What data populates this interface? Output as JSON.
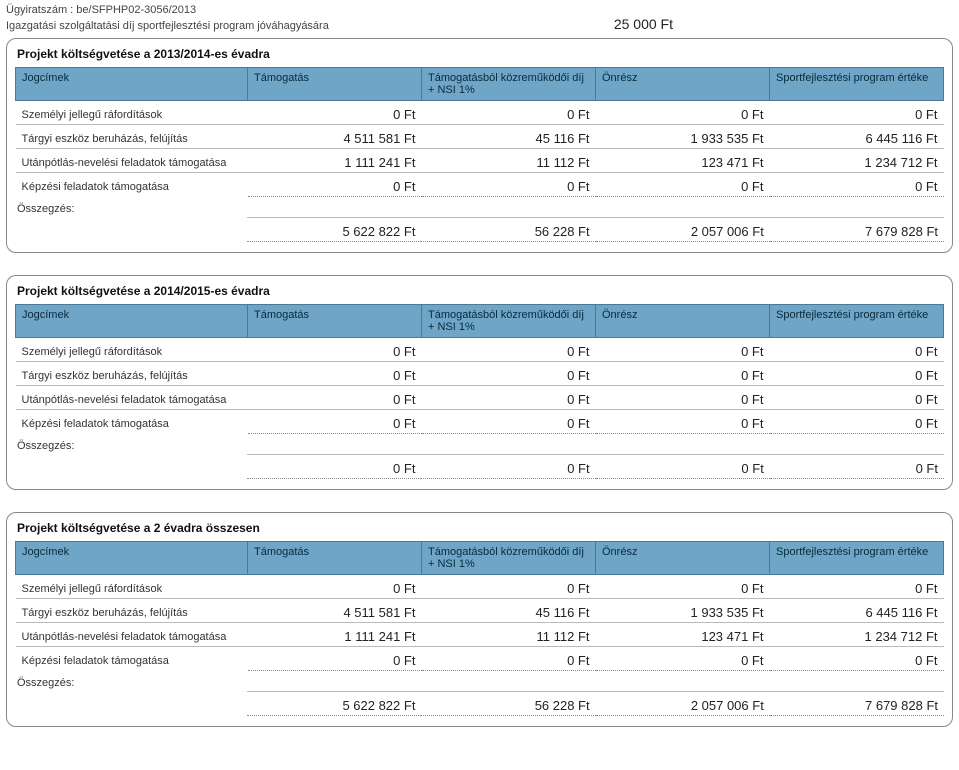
{
  "doc": {
    "case_no": "Ügyiratszám : be/SFPHP02-3056/2013",
    "subtitle": "Igazgatási szolgáltatási díj sportfejlesztési program jóváhagyására",
    "header_amount": "25 000 Ft"
  },
  "columns": {
    "jogcimek": "Jogcímek",
    "tamogatas": "Támogatás",
    "kozrem": "Támogatásból közreműködői díj + NSI 1%",
    "onresz": "Önrész",
    "program": "Sportfejlesztési program értéke"
  },
  "row_labels": {
    "szemelyi": "Személyi jellegű ráfordítások",
    "targyi": "Tárgyi eszköz beruházás, felújítás",
    "utanpotlas": "Utánpótlás-nevelési feladatok támogatása",
    "kepzesi": "Képzési feladatok támogatása",
    "osszegzes": "Összegzés:"
  },
  "panels": [
    {
      "title": "Projekt költségvetése a 2013/2014-es évadra",
      "rows": [
        {
          "key": "szemelyi",
          "v": [
            "0 Ft",
            "0 Ft",
            "0 Ft",
            "0 Ft"
          ]
        },
        {
          "key": "targyi",
          "v": [
            "4 511 581 Ft",
            "45 116 Ft",
            "1 933 535 Ft",
            "6 445 116 Ft"
          ]
        },
        {
          "key": "utanpotlas",
          "v": [
            "1 111 241 Ft",
            "11 112 Ft",
            "123 471 Ft",
            "1 234 712 Ft"
          ]
        },
        {
          "key": "kepzesi",
          "v": [
            "0 Ft",
            "0 Ft",
            "0 Ft",
            "0 Ft"
          ]
        }
      ],
      "summary": [
        "5 622 822 Ft",
        "56 228 Ft",
        "2 057 006 Ft",
        "7 679 828 Ft"
      ]
    },
    {
      "title": "Projekt költségvetése a 2014/2015-es évadra",
      "rows": [
        {
          "key": "szemelyi",
          "v": [
            "0 Ft",
            "0 Ft",
            "0 Ft",
            "0 Ft"
          ]
        },
        {
          "key": "targyi",
          "v": [
            "0 Ft",
            "0 Ft",
            "0 Ft",
            "0 Ft"
          ]
        },
        {
          "key": "utanpotlas",
          "v": [
            "0 Ft",
            "0 Ft",
            "0 Ft",
            "0 Ft"
          ]
        },
        {
          "key": "kepzesi",
          "v": [
            "0 Ft",
            "0 Ft",
            "0 Ft",
            "0 Ft"
          ]
        }
      ],
      "summary": [
        "0 Ft",
        "0 Ft",
        "0 Ft",
        "0 Ft"
      ]
    },
    {
      "title": "Projekt költségvetése a 2 évadra összesen",
      "rows": [
        {
          "key": "szemelyi",
          "v": [
            "0 Ft",
            "0 Ft",
            "0 Ft",
            "0 Ft"
          ]
        },
        {
          "key": "targyi",
          "v": [
            "4 511 581 Ft",
            "45 116 Ft",
            "1 933 535 Ft",
            "6 445 116 Ft"
          ]
        },
        {
          "key": "utanpotlas",
          "v": [
            "1 111 241 Ft",
            "11 112 Ft",
            "123 471 Ft",
            "1 234 712 Ft"
          ]
        },
        {
          "key": "kepzesi",
          "v": [
            "0 Ft",
            "0 Ft",
            "0 Ft",
            "0 Ft"
          ]
        }
      ],
      "summary": [
        "5 622 822 Ft",
        "56 228 Ft",
        "2 057 006 Ft",
        "7 679 828 Ft"
      ]
    }
  ]
}
